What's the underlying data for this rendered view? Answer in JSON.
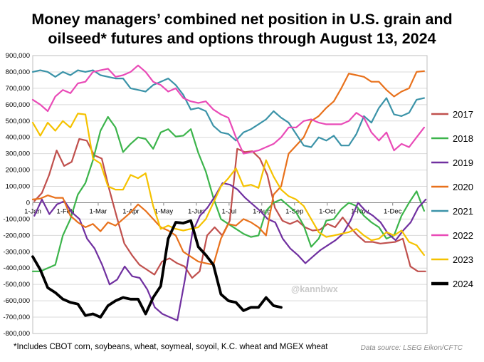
{
  "chart_data": {
    "type": "line",
    "title_lines": [
      "Money managers’ combined net position in U.S. grain and",
      "oilseed* futures and options through August 13, 2024"
    ],
    "footnote": "*Includes CBOT corn, soybeans, wheat, soymeal, soyoil, K.C. wheat and MGEX wheat",
    "source": "Data source: LSEG Eikon/CFTC",
    "watermark": "@kannbwx",
    "ylim": [
      -800000,
      900000
    ],
    "xlim": [
      0,
      12.05
    ],
    "y_ticks": [
      {
        "v": 900000,
        "label": "900,000"
      },
      {
        "v": 800000,
        "label": "800,000"
      },
      {
        "v": 700000,
        "label": "700,000"
      },
      {
        "v": 600000,
        "label": "600,000"
      },
      {
        "v": 500000,
        "label": "500,000"
      },
      {
        "v": 400000,
        "label": "400,000"
      },
      {
        "v": 300000,
        "label": "300,000"
      },
      {
        "v": 200000,
        "label": "200,000"
      },
      {
        "v": 100000,
        "label": "100,000"
      },
      {
        "v": 0,
        "label": "0"
      },
      {
        "v": -100000,
        "label": "-100,000"
      },
      {
        "v": -200000,
        "label": "-200,000"
      },
      {
        "v": -300000,
        "label": "-300,000"
      },
      {
        "v": -400000,
        "label": "-400,000"
      },
      {
        "v": -500000,
        "label": "-500,000"
      },
      {
        "v": -600000,
        "label": "-600,000"
      },
      {
        "v": -700000,
        "label": "-700,000"
      },
      {
        "v": -800000,
        "label": "-800,000"
      }
    ],
    "x_ticks": [
      {
        "v": 0,
        "label": "1-Jan"
      },
      {
        "v": 1,
        "label": "1-Feb"
      },
      {
        "v": 2,
        "label": "1-Mar"
      },
      {
        "v": 3,
        "label": "1-Apr"
      },
      {
        "v": 4,
        "label": "1-May"
      },
      {
        "v": 5,
        "label": "1-Jun"
      },
      {
        "v": 6,
        "label": "1-Jul"
      },
      {
        "v": 7,
        "label": "1-Aug"
      },
      {
        "v": 8,
        "label": "1-Sep"
      },
      {
        "v": 9,
        "label": "1-Oct"
      },
      {
        "v": 10,
        "label": "1-Nov"
      },
      {
        "v": 11,
        "label": "1-Dec"
      }
    ],
    "grid": true,
    "legend_position": "right",
    "series": [
      {
        "name": "2017",
        "color": "#c0504d",
        "width": 2.2,
        "x": [
          0.05,
          0.28,
          0.5,
          0.73,
          0.96,
          1.19,
          1.42,
          1.65,
          1.88,
          2.11,
          2.34,
          2.57,
          2.8,
          3.03,
          3.26,
          3.49,
          3.72,
          3.95,
          4.18,
          4.41,
          4.64,
          4.87,
          5.1,
          5.33,
          5.56,
          5.79,
          6.02,
          6.25,
          6.48,
          6.71,
          6.94,
          7.17,
          7.4,
          7.63,
          7.86,
          8.09,
          8.32,
          8.55,
          8.78,
          9.01,
          9.24,
          9.47,
          9.7,
          9.93,
          10.16,
          10.39,
          10.62,
          10.85,
          11.08,
          11.31,
          11.54,
          11.77,
          12.0
        ],
        "y": [
          10000,
          60000,
          170000,
          320000,
          225000,
          250000,
          390000,
          380000,
          290000,
          270000,
          80000,
          -90000,
          -250000,
          -320000,
          -380000,
          -410000,
          -440000,
          -360000,
          -340000,
          -370000,
          -390000,
          -460000,
          -420000,
          -200000,
          -150000,
          -200000,
          -110000,
          330000,
          310000,
          315000,
          270000,
          170000,
          -30000,
          -110000,
          -130000,
          -110000,
          -150000,
          -170000,
          -165000,
          -130000,
          -150000,
          -90000,
          -150000,
          -200000,
          -240000,
          -240000,
          -250000,
          -245000,
          -240000,
          -220000,
          -390000,
          -420000,
          -420000
        ]
      },
      {
        "name": "2018",
        "color": "#3cb44b",
        "width": 2.2,
        "x": [
          0.0,
          0.23,
          0.46,
          0.69,
          0.92,
          1.15,
          1.38,
          1.61,
          1.84,
          2.07,
          2.3,
          2.53,
          2.76,
          2.99,
          3.22,
          3.45,
          3.68,
          3.91,
          4.14,
          4.37,
          4.6,
          4.83,
          5.06,
          5.29,
          5.52,
          5.75,
          5.98,
          6.21,
          6.44,
          6.67,
          6.9,
          7.13,
          7.36,
          7.59,
          7.82,
          8.05,
          8.28,
          8.51,
          8.74,
          8.97,
          9.2,
          9.43,
          9.66,
          9.89,
          10.12,
          10.35,
          10.58,
          10.81,
          11.04,
          11.27,
          11.5,
          11.73,
          11.96
        ],
        "y": [
          -420000,
          -420000,
          -400000,
          -380000,
          -200000,
          -100000,
          50000,
          120000,
          260000,
          440000,
          525000,
          460000,
          310000,
          360000,
          400000,
          390000,
          330000,
          430000,
          450000,
          405000,
          410000,
          450000,
          305000,
          190000,
          30000,
          -100000,
          -130000,
          -160000,
          -190000,
          -210000,
          -200000,
          -50000,
          0,
          20000,
          -20000,
          -60000,
          -140000,
          -270000,
          -220000,
          -110000,
          -100000,
          -40000,
          0,
          -20000,
          -80000,
          -120000,
          -150000,
          -220000,
          -200000,
          -80000,
          0,
          70000,
          -50000
        ]
      },
      {
        "name": "2019",
        "color": "#7030a0",
        "width": 2.2,
        "x": [
          0.05,
          0.28,
          0.51,
          0.74,
          0.97,
          1.2,
          1.43,
          1.66,
          1.89,
          2.12,
          2.35,
          2.58,
          2.81,
          3.04,
          3.27,
          3.5,
          3.73,
          3.96,
          4.19,
          4.42,
          4.65,
          4.88,
          5.11,
          5.34,
          5.57,
          5.8,
          6.03,
          6.26,
          6.49,
          6.72,
          6.95,
          7.18,
          7.41,
          7.64,
          7.87,
          8.1,
          8.33,
          8.56,
          8.79,
          9.02,
          9.25,
          9.48,
          9.71,
          9.94,
          10.17,
          10.4,
          10.63,
          10.86,
          11.09,
          11.32,
          11.55,
          11.78,
          12.01
        ],
        "y": [
          -80000,
          20000,
          -70000,
          -10000,
          10000,
          -60000,
          -100000,
          -220000,
          -280000,
          -380000,
          -500000,
          -470000,
          -390000,
          -450000,
          -460000,
          -530000,
          -640000,
          -680000,
          -700000,
          -720000,
          -470000,
          -180000,
          -80000,
          -30000,
          40000,
          120000,
          110000,
          80000,
          30000,
          -10000,
          -50000,
          -100000,
          -120000,
          -220000,
          -280000,
          -320000,
          -370000,
          -330000,
          -290000,
          -260000,
          -230000,
          -190000,
          -110000,
          0,
          -50000,
          -80000,
          -120000,
          -190000,
          -230000,
          -170000,
          -120000,
          -30000,
          20000
        ]
      },
      {
        "name": "2020",
        "color": "#e8711c",
        "width": 2.2,
        "x": [
          0.0,
          0.23,
          0.46,
          0.69,
          0.92,
          1.15,
          1.38,
          1.61,
          1.84,
          2.07,
          2.3,
          2.53,
          2.76,
          2.99,
          3.22,
          3.45,
          3.68,
          3.91,
          4.14,
          4.37,
          4.6,
          4.83,
          5.06,
          5.29,
          5.52,
          5.75,
          5.98,
          6.21,
          6.44,
          6.67,
          6.9,
          7.13,
          7.36,
          7.59,
          7.82,
          8.05,
          8.28,
          8.51,
          8.74,
          8.97,
          9.2,
          9.43,
          9.66,
          9.89,
          10.12,
          10.35,
          10.58,
          10.81,
          11.04,
          11.27,
          11.5,
          11.73,
          11.96
        ],
        "y": [
          20000,
          25000,
          45000,
          30000,
          30000,
          -80000,
          -120000,
          -150000,
          -130000,
          -175000,
          -120000,
          -140000,
          -100000,
          -60000,
          -10000,
          -50000,
          -100000,
          -150000,
          -170000,
          -200000,
          -300000,
          -330000,
          -360000,
          -370000,
          -380000,
          -220000,
          -130000,
          -140000,
          -100000,
          -120000,
          -150000,
          -200000,
          50000,
          100000,
          300000,
          350000,
          400000,
          500000,
          530000,
          580000,
          620000,
          700000,
          790000,
          780000,
          770000,
          740000,
          740000,
          690000,
          650000,
          680000,
          700000,
          800000,
          805000
        ]
      },
      {
        "name": "2021",
        "color": "#3b93a8",
        "width": 2.2,
        "x": [
          0.0,
          0.23,
          0.46,
          0.69,
          0.92,
          1.15,
          1.38,
          1.61,
          1.84,
          2.07,
          2.3,
          2.53,
          2.76,
          2.99,
          3.22,
          3.45,
          3.68,
          3.91,
          4.14,
          4.37,
          4.6,
          4.83,
          5.06,
          5.29,
          5.52,
          5.75,
          5.98,
          6.21,
          6.44,
          6.67,
          6.9,
          7.13,
          7.36,
          7.59,
          7.82,
          8.05,
          8.28,
          8.51,
          8.74,
          8.97,
          9.2,
          9.43,
          9.66,
          9.89,
          10.12,
          10.35,
          10.58,
          10.81,
          11.04,
          11.27,
          11.5,
          11.73,
          11.96
        ],
        "y": [
          800000,
          810000,
          800000,
          770000,
          800000,
          780000,
          810000,
          800000,
          810000,
          780000,
          770000,
          760000,
          760000,
          700000,
          690000,
          680000,
          720000,
          740000,
          760000,
          720000,
          660000,
          570000,
          580000,
          560000,
          470000,
          430000,
          420000,
          380000,
          430000,
          450000,
          480000,
          510000,
          560000,
          520000,
          490000,
          420000,
          350000,
          340000,
          400000,
          380000,
          410000,
          350000,
          350000,
          420000,
          530000,
          490000,
          580000,
          640000,
          540000,
          530000,
          550000,
          630000,
          640000
        ]
      },
      {
        "name": "2022",
        "color": "#e94bb7",
        "width": 2.2,
        "x": [
          0.0,
          0.23,
          0.46,
          0.69,
          0.92,
          1.15,
          1.38,
          1.61,
          1.84,
          2.07,
          2.3,
          2.53,
          2.76,
          2.99,
          3.22,
          3.45,
          3.68,
          3.91,
          4.14,
          4.37,
          4.6,
          4.83,
          5.06,
          5.29,
          5.52,
          5.75,
          5.98,
          6.21,
          6.44,
          6.67,
          6.9,
          7.13,
          7.36,
          7.59,
          7.82,
          8.05,
          8.28,
          8.51,
          8.74,
          8.97,
          9.2,
          9.43,
          9.66,
          9.89,
          10.12,
          10.35,
          10.58,
          10.81,
          11.04,
          11.27,
          11.5,
          11.73,
          11.96
        ],
        "y": [
          630000,
          600000,
          560000,
          650000,
          690000,
          670000,
          730000,
          740000,
          800000,
          810000,
          820000,
          770000,
          780000,
          800000,
          840000,
          800000,
          740000,
          720000,
          680000,
          700000,
          640000,
          620000,
          610000,
          620000,
          570000,
          540000,
          520000,
          400000,
          300000,
          310000,
          320000,
          340000,
          360000,
          400000,
          460000,
          460000,
          500000,
          510000,
          490000,
          480000,
          480000,
          480000,
          500000,
          550000,
          520000,
          430000,
          380000,
          430000,
          320000,
          360000,
          340000,
          400000,
          460000
        ]
      },
      {
        "name": "2023",
        "color": "#f5c200",
        "width": 2.2,
        "x": [
          0.0,
          0.23,
          0.46,
          0.69,
          0.92,
          1.15,
          1.38,
          1.61,
          1.84,
          2.07,
          2.3,
          2.53,
          2.76,
          2.99,
          3.22,
          3.45,
          3.68,
          3.91,
          4.14,
          4.37,
          4.6,
          4.83,
          5.06,
          5.29,
          5.52,
          5.75,
          5.98,
          6.21,
          6.44,
          6.67,
          6.9,
          7.13,
          7.36,
          7.59,
          7.82,
          8.05,
          8.28,
          8.51,
          8.74,
          8.97,
          9.2,
          9.43,
          9.66,
          9.89,
          10.12,
          10.35,
          10.58,
          10.81,
          11.04,
          11.27,
          11.5,
          11.73,
          11.96
        ],
        "y": [
          490000,
          410000,
          490000,
          440000,
          500000,
          460000,
          545000,
          540000,
          270000,
          240000,
          100000,
          80000,
          80000,
          170000,
          150000,
          180000,
          -20000,
          -160000,
          -140000,
          -160000,
          -170000,
          -160000,
          -150000,
          -100000,
          0,
          100000,
          150000,
          210000,
          100000,
          110000,
          90000,
          260000,
          160000,
          80000,
          40000,
          20000,
          -20000,
          -100000,
          -180000,
          -210000,
          -200000,
          -190000,
          -180000,
          -160000,
          -200000,
          -230000,
          -220000,
          -180000,
          -200000,
          -170000,
          -240000,
          -260000,
          -320000
        ]
      },
      {
        "name": "2024",
        "color": "#000000",
        "width": 3.8,
        "x": [
          0.0,
          0.23,
          0.46,
          0.69,
          0.92,
          1.15,
          1.38,
          1.61,
          1.84,
          2.07,
          2.3,
          2.53,
          2.76,
          2.99,
          3.22,
          3.45,
          3.68,
          3.91,
          4.14,
          4.37,
          4.6,
          4.83,
          5.06,
          5.29,
          5.52,
          5.75,
          5.98,
          6.21,
          6.44,
          6.67,
          6.9,
          7.13,
          7.36,
          7.59
        ],
        "y": [
          -330000,
          -410000,
          -520000,
          -550000,
          -590000,
          -610000,
          -620000,
          -690000,
          -680000,
          -700000,
          -630000,
          -600000,
          -580000,
          -590000,
          -590000,
          -680000,
          -580000,
          -510000,
          -220000,
          -120000,
          -125000,
          -110000,
          -270000,
          -320000,
          -380000,
          -560000,
          -600000,
          -610000,
          -660000,
          -640000,
          -640000,
          -580000,
          -630000,
          -640000
        ]
      }
    ]
  }
}
